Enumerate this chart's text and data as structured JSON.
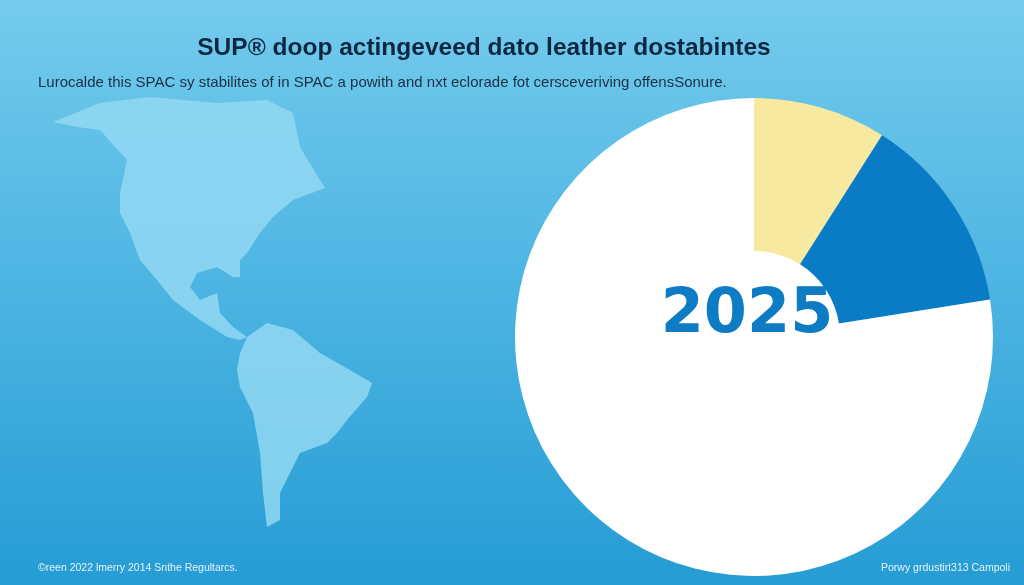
{
  "chart_data": {
    "type": "donut",
    "title": "SUP® doop actingeveed dato leather dostabintes",
    "subtitle": "Lurocalde this SPAC sy stabilites of in SPAC a powith and nxt eclorade fot cersceveriving offensSonure.",
    "categories": [
      null,
      null,
      null
    ],
    "values": [
      9,
      13.5,
      77.5
    ],
    "colors": [
      "#f8e9a1",
      "#0a7cc6",
      "#ffffff"
    ],
    "annotations": [
      "2025",
      "©reen 2022 lmerry 2014 Snthe Regultarcs.",
      "Porwy grdustirt313 Campoli"
    ]
  }
}
